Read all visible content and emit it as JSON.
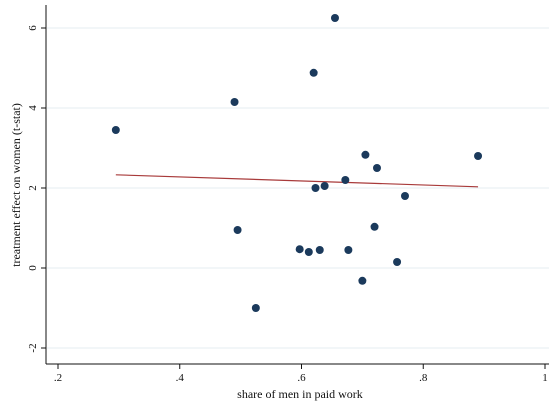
{
  "chart_data": {
    "type": "scatter",
    "xlabel": "share of men in paid work",
    "ylabel": "treatment effect on women (t-stat)",
    "xlim": [
      0.2,
      1.0
    ],
    "ylim": [
      -2,
      6.3
    ],
    "x_ticks": [
      0.2,
      0.4,
      0.6,
      0.8,
      1.0
    ],
    "x_tick_labels": [
      ".2",
      ".4",
      ".6",
      ".8",
      "1"
    ],
    "y_ticks": [
      -2,
      0,
      2,
      4,
      6
    ],
    "y_tick_labels": [
      "-2",
      "0",
      "2",
      "4",
      "6"
    ],
    "grid": "horizontal",
    "points": [
      {
        "x": 0.295,
        "y": 3.45
      },
      {
        "x": 0.49,
        "y": 4.15
      },
      {
        "x": 0.495,
        "y": 0.95
      },
      {
        "x": 0.525,
        "y": -1.0
      },
      {
        "x": 0.597,
        "y": 0.47
      },
      {
        "x": 0.612,
        "y": 0.4
      },
      {
        "x": 0.62,
        "y": 4.88
      },
      {
        "x": 0.623,
        "y": 2.0
      },
      {
        "x": 0.63,
        "y": 0.45
      },
      {
        "x": 0.638,
        "y": 2.05
      },
      {
        "x": 0.655,
        "y": 6.25
      },
      {
        "x": 0.672,
        "y": 2.2
      },
      {
        "x": 0.677,
        "y": 0.45
      },
      {
        "x": 0.7,
        "y": -0.32
      },
      {
        "x": 0.705,
        "y": 2.83
      },
      {
        "x": 0.72,
        "y": 1.03
      },
      {
        "x": 0.724,
        "y": 2.5
      },
      {
        "x": 0.757,
        "y": 0.15
      },
      {
        "x": 0.77,
        "y": 1.8
      },
      {
        "x": 0.89,
        "y": 2.8
      }
    ],
    "fit_line": {
      "x": [
        0.295,
        0.89
      ],
      "y": [
        2.33,
        2.03
      ]
    },
    "colors": {
      "point": "#1b3a5c",
      "fit_line": "#a83a3a",
      "grid": "#e6ecf1",
      "axis": "#111111"
    }
  }
}
